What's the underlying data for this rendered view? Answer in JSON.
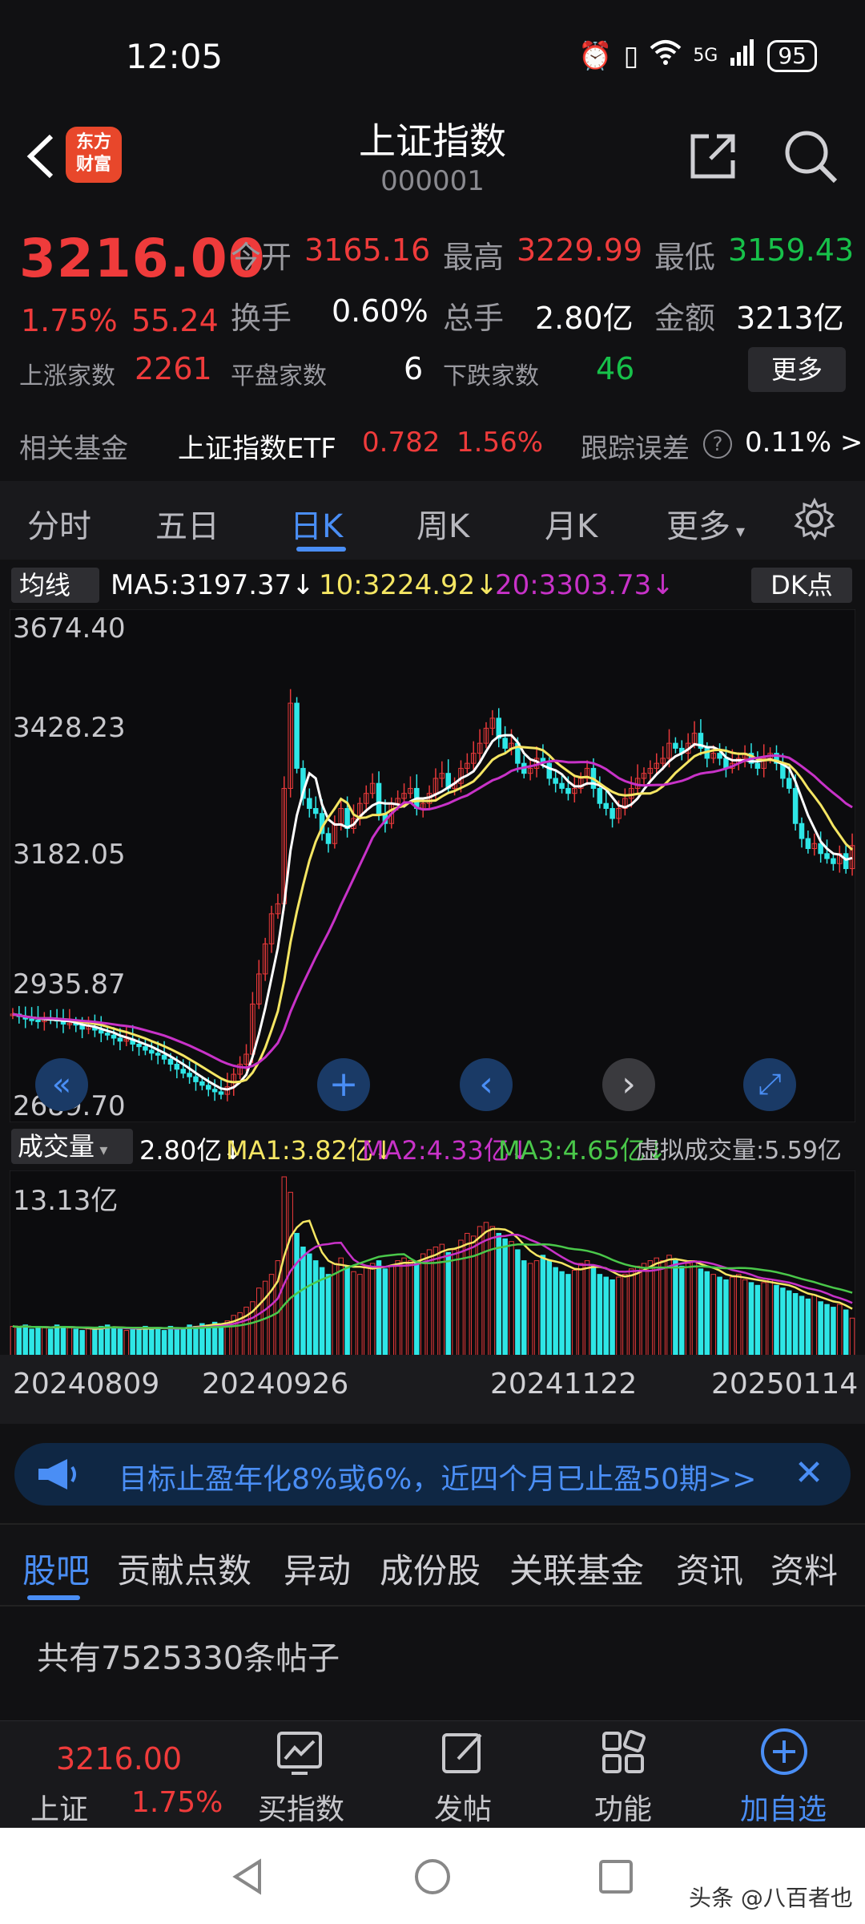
{
  "status": {
    "time": "12:05",
    "battery": "95",
    "network": "5G"
  },
  "header": {
    "title": "上证指数",
    "code": "000001",
    "logo_text_1": "东方",
    "logo_text_2": "财富"
  },
  "quote": {
    "price": "3216.00",
    "pct": "1.75%",
    "change": "55.24",
    "open_label": "今开",
    "open": "3165.16",
    "high_label": "最高",
    "high": "3229.99",
    "low_label": "最低",
    "low": "3159.43",
    "turnover_label": "换手",
    "turnover": "0.60%",
    "volume_label": "总手",
    "volume": "2.80亿",
    "amount_label": "金额",
    "amount": "3213亿",
    "up_label": "上涨家数",
    "up": "2261",
    "flat_label": "平盘家数",
    "flat": "6",
    "down_label": "下跌家数",
    "down": "46",
    "more": "更多"
  },
  "fund": {
    "label": "相关基金",
    "name": "上证指数ETF",
    "price": "0.782",
    "pct": "1.56%",
    "err_label": "跟踪误差",
    "err": "0.11%",
    "arrow": ">"
  },
  "tabs": [
    "分时",
    "五日",
    "日K",
    "周K",
    "月K",
    "更多"
  ],
  "ma": {
    "btn": "均线",
    "ma5": "MA5:3197.37↓",
    "ma10": "10:3224.92↓",
    "ma20": "20:3303.73↓",
    "dk": "DK点",
    "colors": {
      "ma5": "#ffffff",
      "ma10": "#f5e663",
      "ma20": "#c832c8"
    }
  },
  "volume_legend": {
    "btn": "成交量",
    "cur": "2.80亿↓",
    "ma1": "MA1:3.82亿↓",
    "ma2": "MA2:4.33亿↓",
    "ma3": "MA3:4.65亿↓",
    "virtual": "虚拟成交量:5.59亿"
  },
  "chart_data": {
    "type": "candlestick",
    "y_ticks": [
      "3674.40",
      "3428.23",
      "3182.05",
      "2935.87",
      "2689.70"
    ],
    "ylim": [
      2689.7,
      3674.4
    ],
    "volume_max_label": "13.13亿",
    "x_ticks": [
      "20240809",
      "20240926",
      "20241122",
      "20250114"
    ],
    "closes": [
      2880,
      2875,
      2870,
      2868,
      2865,
      2872,
      2870,
      2866,
      2860,
      2862,
      2858,
      2850,
      2855,
      2848,
      2842,
      2838,
      2832,
      2826,
      2830,
      2820,
      2815,
      2808,
      2802,
      2798,
      2790,
      2780,
      2770,
      2762,
      2755,
      2745,
      2738,
      2730,
      2725,
      2720,
      2735,
      2760,
      2780,
      2800,
      2900,
      2960,
      3020,
      3080,
      3100,
      3330,
      3500,
      3370,
      3310,
      3290,
      3280,
      3240,
      3220,
      3260,
      3290,
      3250,
      3270,
      3300,
      3320,
      3340,
      3280,
      3260,
      3300,
      3310,
      3320,
      3330,
      3290,
      3300,
      3320,
      3350,
      3360,
      3330,
      3340,
      3370,
      3380,
      3400,
      3420,
      3450,
      3470,
      3430,
      3410,
      3420,
      3380,
      3360,
      3370,
      3390,
      3380,
      3350,
      3340,
      3330,
      3320,
      3330,
      3350,
      3370,
      3330,
      3300,
      3290,
      3270,
      3290,
      3310,
      3330,
      3350,
      3360,
      3370,
      3380,
      3390,
      3420,
      3410,
      3400,
      3420,
      3440,
      3410,
      3390,
      3400,
      3390,
      3370,
      3380,
      3390,
      3400,
      3380,
      3370,
      3390,
      3400,
      3380,
      3350,
      3330,
      3260,
      3230,
      3210,
      3220,
      3200,
      3190,
      3180,
      3200,
      3170,
      3216
    ],
    "volumes": [
      2.2,
      2.1,
      2.3,
      2.0,
      2.2,
      2.1,
      2.0,
      2.3,
      2.2,
      2.1,
      2.0,
      1.9,
      2.1,
      2.0,
      2.2,
      2.3,
      2.1,
      2.0,
      1.9,
      2.0,
      2.1,
      2.2,
      2.0,
      2.1,
      1.9,
      2.2,
      2.0,
      2.1,
      2.3,
      2.2,
      2.4,
      2.3,
      2.5,
      2.4,
      2.6,
      3.0,
      3.2,
      3.6,
      4.0,
      5.0,
      5.5,
      6.0,
      7.0,
      13.13,
      12.0,
      9.0,
      8.0,
      7.5,
      7.0,
      6.5,
      6.0,
      6.8,
      7.2,
      6.6,
      6.2,
      6.0,
      6.5,
      6.8,
      7.0,
      6.4,
      6.6,
      7.0,
      7.2,
      7.0,
      6.8,
      7.5,
      7.8,
      8.0,
      8.2,
      7.6,
      7.8,
      8.5,
      9.0,
      8.8,
      9.5,
      9.8,
      9.5,
      9.0,
      8.6,
      8.4,
      7.8,
      7.0,
      6.8,
      7.0,
      7.4,
      7.0,
      6.5,
      6.2,
      6.0,
      6.3,
      6.8,
      7.0,
      6.6,
      6.0,
      5.8,
      5.6,
      5.8,
      6.0,
      6.4,
      6.6,
      6.8,
      7.0,
      7.2,
      7.0,
      7.4,
      7.0,
      6.6,
      6.8,
      7.0,
      6.4,
      6.2,
      6.0,
      5.8,
      5.6,
      5.8,
      6.0,
      5.6,
      5.4,
      5.2,
      5.4,
      5.6,
      5.2,
      5.0,
      4.8,
      4.6,
      4.4,
      4.2,
      4.5,
      4.0,
      3.8,
      3.6,
      3.8,
      3.4,
      2.8
    ]
  },
  "chart_buttons": [
    "«",
    "+",
    "‹",
    "›",
    "⤢"
  ],
  "banner": {
    "text": "目标止盈年化8%或6%，近四个月已止盈50期>>",
    "close": "✕"
  },
  "section_tabs": [
    "股吧",
    "贡献点数",
    "异动",
    "成份股",
    "关联基金",
    "资讯",
    "资料"
  ],
  "posts": "共有7525330条帖子",
  "bottom_nav": {
    "price": "3216.00",
    "name": "上证",
    "pct": "1.75%",
    "items": [
      "买指数",
      "发帖",
      "功能",
      "加自选"
    ]
  },
  "watermark": "头条 @八百者也"
}
